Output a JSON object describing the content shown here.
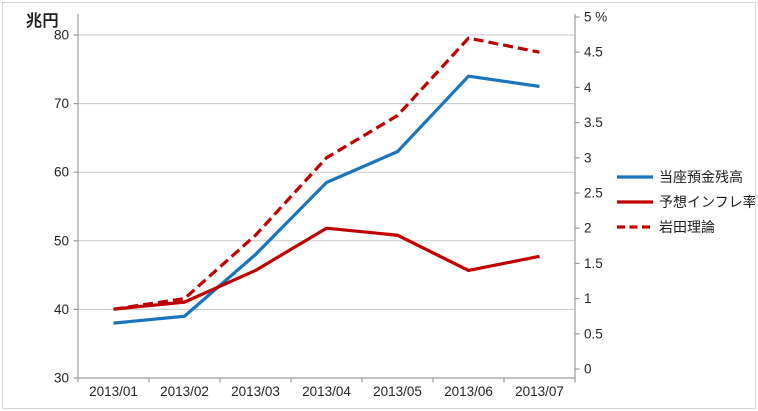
{
  "chart_data": {
    "type": "line",
    "title": "",
    "categories": [
      "2013/01",
      "2013/02",
      "2013/03",
      "2013/04",
      "2013/05",
      "2013/06",
      "2013/07"
    ],
    "series": [
      {
        "key": "current-account-balance",
        "name": "当座預金残高",
        "axis": "left",
        "color": "#1a75bc",
        "dash": "solid",
        "values": [
          38,
          39,
          48,
          58.5,
          63,
          74,
          72.5
        ]
      },
      {
        "key": "expected-inflation-rate",
        "name": "予想インフレ率",
        "axis": "right",
        "color": "#c00000",
        "dash": "solid",
        "values": [
          0.85,
          0.95,
          1.4,
          2.0,
          1.9,
          1.4,
          1.6
        ]
      },
      {
        "key": "iwata-theory",
        "name": "岩田理論",
        "axis": "right",
        "color": "#c00000",
        "dash": "dashed",
        "values": [
          0.85,
          1.0,
          1.9,
          3.0,
          3.6,
          4.7,
          4.5
        ]
      }
    ],
    "left_axis": {
      "title": "兆円",
      "min": 30,
      "max": 80,
      "tick_values": [
        30,
        40,
        50,
        60,
        70,
        80
      ],
      "tick_labels": [
        "30",
        "40",
        "50",
        "60",
        "70",
        "80"
      ]
    },
    "right_axis": {
      "unit": "%",
      "min": 0,
      "max": 5,
      "tick_values": [
        0,
        0.5,
        1,
        1.5,
        2,
        2.5,
        3,
        3.5,
        4,
        4.5,
        5
      ],
      "tick_labels": [
        "0",
        "0.5",
        "1",
        "1.5",
        "2",
        "2.5",
        "3",
        "3.5",
        "4",
        "4.5",
        "5 %"
      ]
    },
    "x_axis": {
      "tick_labels": [
        "2013/01",
        "2013/02",
        "2013/03",
        "2013/04",
        "2013/05",
        "2013/06",
        "2013/07"
      ]
    },
    "legend": {
      "position": "right",
      "items": [
        "当座預金残高",
        "予想インフレ率",
        "岩田理論"
      ]
    },
    "grid": true
  },
  "colors": {
    "background": "#ffffff",
    "border": "#d6d6d6",
    "gridline": "#c8c8c8",
    "axis": "#9c9c9c",
    "text": "#262626"
  }
}
